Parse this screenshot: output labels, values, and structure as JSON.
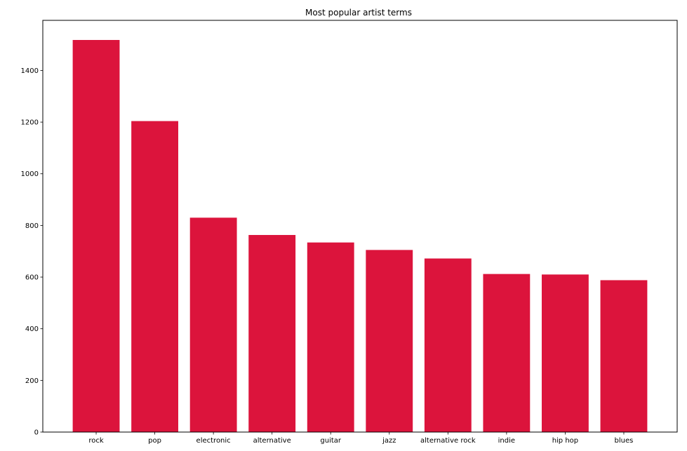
{
  "chart_data": {
    "type": "bar",
    "title": "Most popular artist terms",
    "xlabel": "",
    "ylabel": "",
    "categories": [
      "rock",
      "pop",
      "electronic",
      "alternative",
      "guitar",
      "jazz",
      "alternative rock",
      "indie",
      "hip hop",
      "blues"
    ],
    "values": [
      1518,
      1204,
      830,
      763,
      734,
      705,
      672,
      612,
      610,
      588
    ],
    "ylim": [
      0,
      1594
    ],
    "yticks": [
      0,
      200,
      400,
      600,
      800,
      1000,
      1200,
      1400
    ],
    "grid": false,
    "legend": "none",
    "bar_color": "#dc143c"
  }
}
